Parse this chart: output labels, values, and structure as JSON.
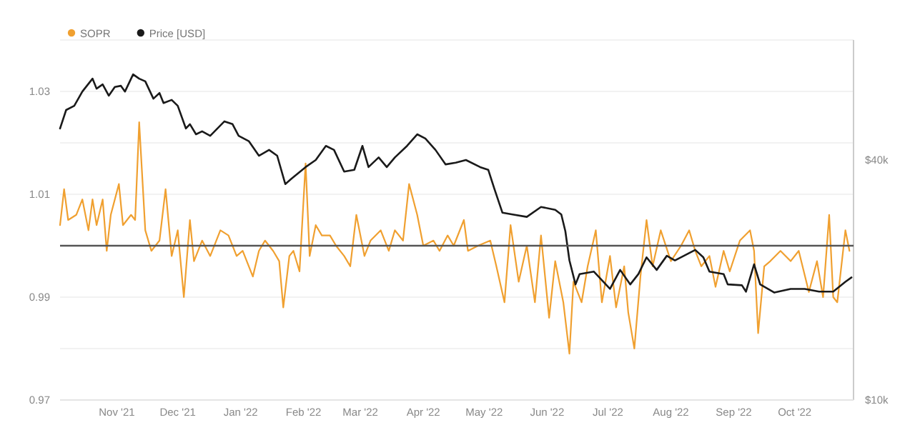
{
  "chart_data": {
    "type": "line",
    "legend": "top left",
    "grid": "y",
    "log": "y2",
    "xlim": [
      "2021-10-04",
      "2022-10-30"
    ],
    "xticks": [
      {
        "value": "2021-11-01",
        "label": "Nov '21"
      },
      {
        "value": "2021-12-01",
        "label": "Dec '21"
      },
      {
        "value": "2022-01-01",
        "label": "Jan '22"
      },
      {
        "value": "2022-02-01",
        "label": "Feb '22"
      },
      {
        "value": "2022-03-01",
        "label": "Mar '22"
      },
      {
        "value": "2022-04-01",
        "label": "Apr '22"
      },
      {
        "value": "2022-05-01",
        "label": "May '22"
      },
      {
        "value": "2022-06-01",
        "label": "Jun '22"
      },
      {
        "value": "2022-07-01",
        "label": "Jul '22"
      },
      {
        "value": "2022-08-01",
        "label": "Aug '22"
      },
      {
        "value": "2022-09-01",
        "label": "Sep '22"
      },
      {
        "value": "2022-10-01",
        "label": "Oct '22"
      }
    ],
    "ylim": [
      0.97,
      1.04
    ],
    "yticks": [
      0.97,
      {
        "value": 0.98,
        "label": null
      },
      0.99,
      {
        "value": 1.0,
        "label": null
      },
      1.01,
      {
        "value": 1.02,
        "label": null
      },
      1.03,
      {
        "value": 1.04,
        "label": null
      }
    ],
    "y2lim": [
      10000,
      80000
    ],
    "y2ticks": [
      {
        "value": 10000,
        "label": "$10k"
      },
      {
        "value": 40000,
        "label": "$40k"
      }
    ],
    "ref_lines": [
      {
        "axis": "y",
        "value": 1,
        "color": "#555555"
      }
    ],
    "series": [
      {
        "name": "SOPR",
        "color": "#f0a030",
        "x": [
          "2021-10-04",
          "2021-10-06",
          "2021-10-08",
          "2021-10-12",
          "2021-10-15",
          "2021-10-18",
          "2021-10-20",
          "2021-10-22",
          "2021-10-25",
          "2021-10-27",
          "2021-10-29",
          "2021-11-02",
          "2021-11-04",
          "2021-11-08",
          "2021-11-10",
          "2021-11-12",
          "2021-11-15",
          "2021-11-18",
          "2021-11-22",
          "2021-11-25",
          "2021-11-28",
          "2021-12-01",
          "2021-12-04",
          "2021-12-07",
          "2021-12-09",
          "2021-12-13",
          "2021-12-17",
          "2021-12-20",
          "2021-12-22",
          "2021-12-26",
          "2021-12-30",
          "2022-01-02",
          "2022-01-07",
          "2022-01-10",
          "2022-01-13",
          "2022-01-17",
          "2022-01-20",
          "2022-01-22",
          "2022-01-25",
          "2022-01-27",
          "2022-01-30",
          "2022-02-02",
          "2022-02-04",
          "2022-02-07",
          "2022-02-10",
          "2022-02-14",
          "2022-02-17",
          "2022-02-21",
          "2022-02-24",
          "2022-02-27",
          "2022-03-03",
          "2022-03-06",
          "2022-03-11",
          "2022-03-15",
          "2022-03-18",
          "2022-03-22",
          "2022-03-25",
          "2022-03-29",
          "2022-04-01",
          "2022-04-06",
          "2022-04-09",
          "2022-04-13",
          "2022-04-16",
          "2022-04-21",
          "2022-04-23",
          "2022-04-28",
          "2022-05-04",
          "2022-05-07",
          "2022-05-11",
          "2022-05-14",
          "2022-05-18",
          "2022-05-22",
          "2022-05-26",
          "2022-05-29",
          "2022-06-02",
          "2022-06-05",
          "2022-06-09",
          "2022-06-12",
          "2022-06-14",
          "2022-06-18",
          "2022-06-21",
          "2022-06-25",
          "2022-06-28",
          "2022-07-02",
          "2022-07-05",
          "2022-07-09",
          "2022-07-11",
          "2022-07-14",
          "2022-07-17",
          "2022-07-20",
          "2022-07-23",
          "2022-07-27",
          "2022-08-01",
          "2022-08-06",
          "2022-08-10",
          "2022-08-13",
          "2022-08-16",
          "2022-08-20",
          "2022-08-23",
          "2022-08-27",
          "2022-08-30",
          "2022-09-04",
          "2022-09-09",
          "2022-09-11",
          "2022-09-13",
          "2022-09-16",
          "2022-09-19",
          "2022-09-24",
          "2022-09-29",
          "2022-10-03",
          "2022-10-08",
          "2022-10-12",
          "2022-10-15",
          "2022-10-18",
          "2022-10-20",
          "2022-10-22",
          "2022-10-26",
          "2022-10-28"
        ],
        "values": [
          1.004,
          1.011,
          1.005,
          1.006,
          1.009,
          1.003,
          1.009,
          1.004,
          1.009,
          0.999,
          1.006,
          1.012,
          1.004,
          1.006,
          1.005,
          1.024,
          1.003,
          0.999,
          1.001,
          1.011,
          0.998,
          1.003,
          0.99,
          1.005,
          0.997,
          1.001,
          0.998,
          1.001,
          1.003,
          1.002,
          0.998,
          0.999,
          0.994,
          0.999,
          1.001,
          0.999,
          0.997,
          0.988,
          0.998,
          0.999,
          0.995,
          1.016,
          0.998,
          1.004,
          1.002,
          1.002,
          1.0,
          0.998,
          0.996,
          1.006,
          0.998,
          1.001,
          1.003,
          0.999,
          1.003,
          1.001,
          1.012,
          1.006,
          1.0,
          1.001,
          0.999,
          1.002,
          1.0,
          1.005,
          0.999,
          1.0,
          1.001,
          0.996,
          0.989,
          1.004,
          0.993,
          1.0,
          0.989,
          1.002,
          0.986,
          0.997,
          0.989,
          0.979,
          0.993,
          0.989,
          0.996,
          1.003,
          0.989,
          0.998,
          0.988,
          0.996,
          0.987,
          0.98,
          0.994,
          1.005,
          0.996,
          1.003,
          0.997,
          1.0,
          1.003,
          0.999,
          0.996,
          0.998,
          0.992,
          0.999,
          0.995,
          1.001,
          1.003,
          0.999,
          0.983,
          0.996,
          0.997,
          0.999,
          0.997,
          0.999,
          0.991,
          0.997,
          0.99,
          1.006,
          0.99,
          0.989,
          1.003,
          0.999
        ]
      },
      {
        "name": "Price [USD]",
        "color": "#1a1a1a",
        "axis": "y2",
        "x": [
          "2021-10-04",
          "2021-10-07",
          "2021-10-11",
          "2021-10-15",
          "2021-10-20",
          "2021-10-22",
          "2021-10-25",
          "2021-10-28",
          "2021-10-31",
          "2021-11-03",
          "2021-11-05",
          "2021-11-09",
          "2021-11-12",
          "2021-11-15",
          "2021-11-19",
          "2021-11-22",
          "2021-11-24",
          "2021-11-28",
          "2021-12-01",
          "2021-12-05",
          "2021-12-07",
          "2021-12-10",
          "2021-12-13",
          "2021-12-17",
          "2021-12-24",
          "2021-12-28",
          "2021-12-31",
          "2022-01-05",
          "2022-01-10",
          "2022-01-15",
          "2022-01-19",
          "2022-01-23",
          "2022-01-26",
          "2022-02-02",
          "2022-02-07",
          "2022-02-12",
          "2022-02-16",
          "2022-02-21",
          "2022-02-26",
          "2022-03-02",
          "2022-03-05",
          "2022-03-10",
          "2022-03-14",
          "2022-03-18",
          "2022-03-24",
          "2022-03-29",
          "2022-04-02",
          "2022-04-07",
          "2022-04-12",
          "2022-04-17",
          "2022-04-22",
          "2022-04-29",
          "2022-05-03",
          "2022-05-06",
          "2022-05-10",
          "2022-05-15",
          "2022-05-22",
          "2022-05-29",
          "2022-06-05",
          "2022-06-08",
          "2022-06-10",
          "2022-06-12",
          "2022-06-15",
          "2022-06-17",
          "2022-06-24",
          "2022-07-02",
          "2022-07-07",
          "2022-07-12",
          "2022-07-16",
          "2022-07-20",
          "2022-07-25",
          "2022-07-30",
          "2022-08-03",
          "2022-08-13",
          "2022-08-17",
          "2022-08-20",
          "2022-08-27",
          "2022-08-29",
          "2022-09-05",
          "2022-09-07",
          "2022-09-11",
          "2022-09-14",
          "2022-09-21",
          "2022-09-29",
          "2022-10-06",
          "2022-10-13",
          "2022-10-20",
          "2022-10-26",
          "2022-10-29"
        ],
        "values": [
          48000,
          53400,
          54700,
          59400,
          64000,
          60400,
          61900,
          58000,
          61000,
          61400,
          59400,
          65600,
          64000,
          63000,
          57000,
          58900,
          55600,
          56600,
          54700,
          48000,
          49200,
          46400,
          47200,
          46000,
          50000,
          49200,
          46000,
          44600,
          41000,
          42400,
          41000,
          34800,
          35900,
          38400,
          40000,
          43400,
          42400,
          37400,
          37800,
          43400,
          38400,
          40600,
          38400,
          40600,
          43400,
          46400,
          45300,
          42400,
          39000,
          39400,
          40000,
          38400,
          37800,
          33900,
          29500,
          29200,
          28800,
          30500,
          30000,
          29200,
          26500,
          22400,
          19500,
          20700,
          21000,
          19000,
          21200,
          19500,
          20700,
          22800,
          21200,
          23000,
          22400,
          23800,
          22800,
          21000,
          20700,
          19500,
          19400,
          18700,
          21900,
          19500,
          18600,
          19000,
          19000,
          18700,
          18700,
          19800,
          20300
        ]
      }
    ]
  }
}
